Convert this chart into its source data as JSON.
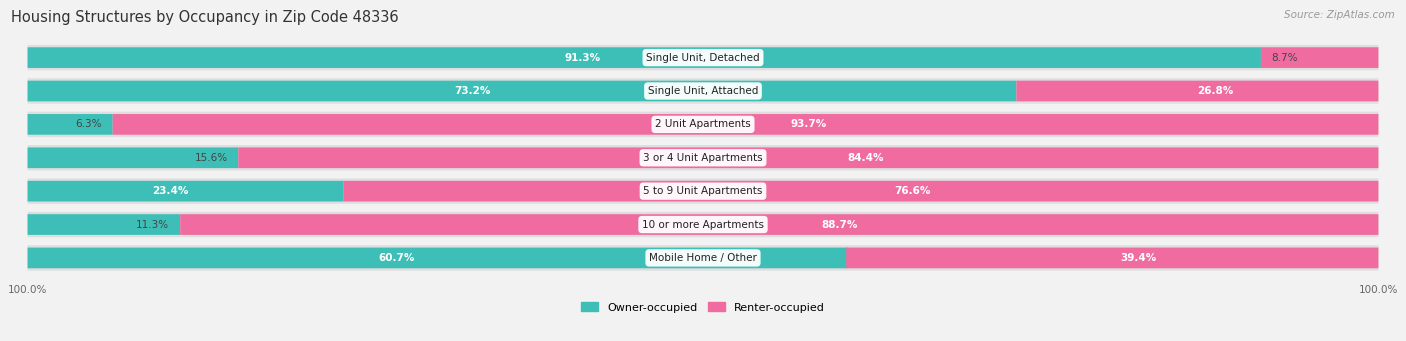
{
  "title": "Housing Structures by Occupancy in Zip Code 48336",
  "source": "Source: ZipAtlas.com",
  "categories": [
    "Single Unit, Detached",
    "Single Unit, Attached",
    "2 Unit Apartments",
    "3 or 4 Unit Apartments",
    "5 to 9 Unit Apartments",
    "10 or more Apartments",
    "Mobile Home / Other"
  ],
  "owner_pct": [
    91.3,
    73.2,
    6.3,
    15.6,
    23.4,
    11.3,
    60.7
  ],
  "renter_pct": [
    8.7,
    26.8,
    93.7,
    84.4,
    76.6,
    88.7,
    39.4
  ],
  "owner_color": "#3DBFB8",
  "renter_color": "#F06CA0",
  "bg_color": "#F2F2F2",
  "bar_bg_color": "#DEDEDE",
  "title_fontsize": 10.5,
  "label_fontsize": 7.5,
  "category_fontsize": 7.5,
  "legend_fontsize": 8,
  "source_fontsize": 7.5
}
